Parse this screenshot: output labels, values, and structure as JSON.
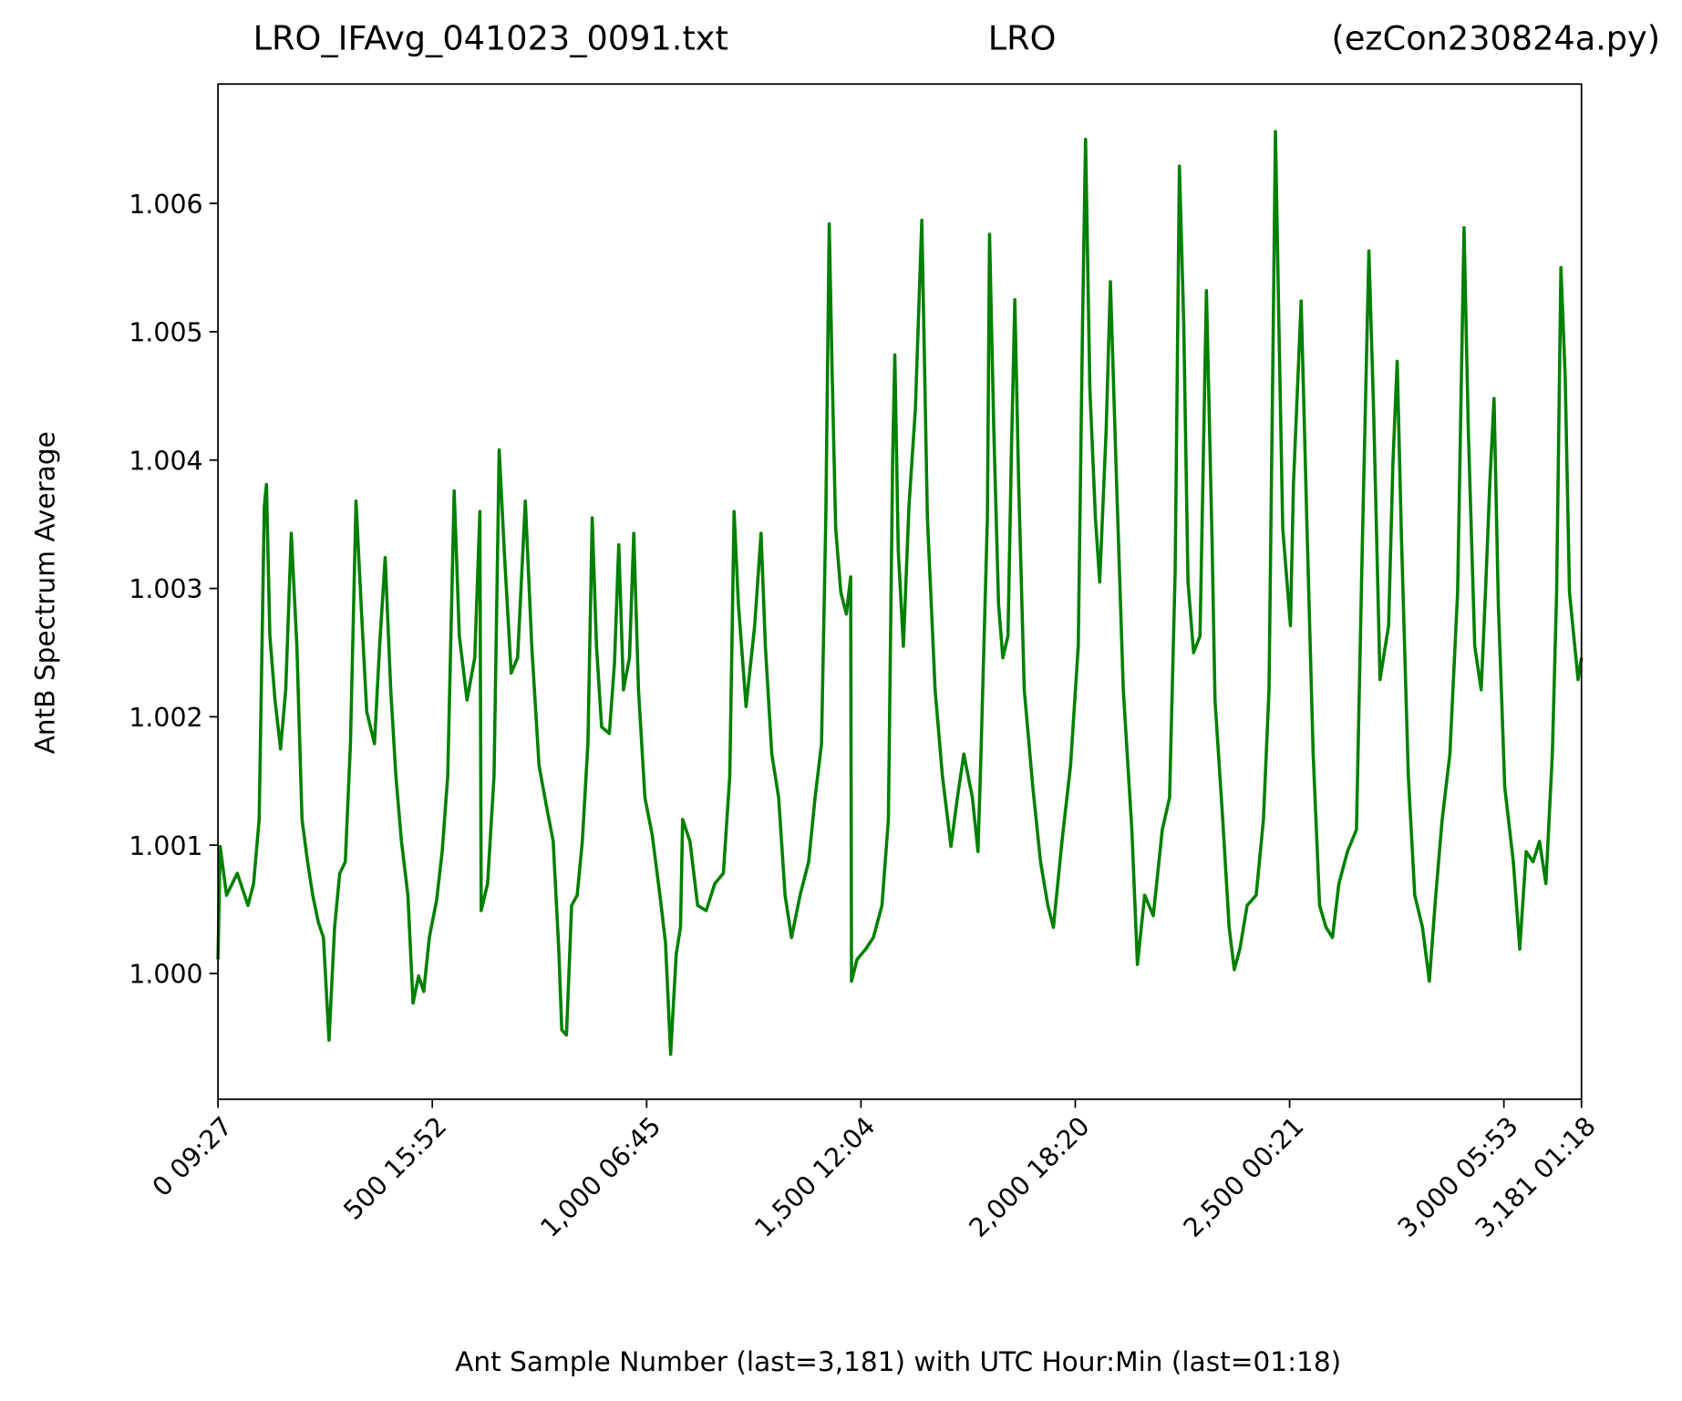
{
  "chart_data": {
    "type": "line",
    "title": [
      "LRO_IFAvg_041023_0091.txt",
      "LRO",
      "(ezCon230824a.py)"
    ],
    "xlabel": "Ant Sample Number (last=3,181) with UTC Hour:Min (last=01:18)",
    "ylabel": "AntB Spectrum Average",
    "color": "#008000",
    "xlim": [
      0,
      3181
    ],
    "ylim": [
      0.99902,
      1.00693
    ],
    "xticks": [
      {
        "value": 0,
        "label": "0  09:27"
      },
      {
        "value": 500,
        "label": "500  15:52"
      },
      {
        "value": 1000,
        "label": "1,000  06:45"
      },
      {
        "value": 1500,
        "label": "1,500  12:04"
      },
      {
        "value": 2000,
        "label": "2,000  18:20"
      },
      {
        "value": 2500,
        "label": "2,500  00:21"
      },
      {
        "value": 3000,
        "label": "3,000  05:53"
      },
      {
        "value": 3181,
        "label": "3,181  01:18"
      }
    ],
    "yticks": [
      {
        "value": 1,
        "label": "1.000"
      },
      1.001,
      1.002,
      1.003,
      1.004,
      1.005,
      1.006
    ],
    "x": [
      0,
      5,
      20,
      45,
      70,
      83,
      96,
      108,
      113,
      121,
      133,
      146,
      158,
      171,
      184,
      196,
      209,
      221,
      234,
      246,
      259,
      272,
      284,
      297,
      309,
      322,
      335,
      347,
      365,
      377,
      390,
      403,
      415,
      428,
      443,
      455,
      468,
      480,
      493,
      510,
      523,
      536,
      551,
      563,
      581,
      599,
      611,
      614,
      629,
      644,
      656,
      669,
      684,
      699,
      717,
      732,
      749,
      767,
      782,
      795,
      802,
      813,
      825,
      838,
      850,
      863,
      873,
      883,
      895,
      913,
      925,
      935,
      946,
      960,
      970,
      981,
      996,
      1013,
      1031,
      1044,
      1056,
      1069,
      1079,
      1084,
      1101,
      1119,
      1139,
      1159,
      1179,
      1194,
      1204,
      1214,
      1232,
      1252,
      1267,
      1277,
      1292,
      1308,
      1323,
      1338,
      1358,
      1378,
      1393,
      1408,
      1418,
      1426,
      1433,
      1441,
      1453,
      1466,
      1476,
      1478,
      1491,
      1511,
      1529,
      1549,
      1564,
      1574,
      1579,
      1587,
      1599,
      1612,
      1627,
      1642,
      1655,
      1673,
      1690,
      1710,
      1725,
      1740,
      1760,
      1773,
      1780,
      1795,
      1800,
      1810,
      1821,
      1831,
      1843,
      1851,
      1859,
      1868,
      1881,
      1901,
      1919,
      1936,
      1949,
      1969,
      1989,
      2007,
      2017,
      2024,
      2034,
      2047,
      2057,
      2072,
      2082,
      2095,
      2112,
      2132,
      2145,
      2162,
      2182,
      2203,
      2220,
      2233,
      2243,
      2253,
      2263,
      2276,
      2291,
      2306,
      2319,
      2326,
      2344,
      2359,
      2371,
      2384,
      2401,
      2422,
      2439,
      2452,
      2462,
      2467,
      2475,
      2484,
      2502,
      2509,
      2527,
      2540,
      2555,
      2570,
      2585,
      2600,
      2615,
      2635,
      2656,
      2670,
      2685,
      2696,
      2711,
      2731,
      2741,
      2751,
      2761,
      2777,
      2792,
      2810,
      2826,
      2841,
      2856,
      2874,
      2892,
      2907,
      2917,
      2932,
      2947,
      2957,
      2967,
      2977,
      2987,
      3002,
      3022,
      3037,
      3052,
      3068,
      3083,
      3098,
      3113,
      3123,
      3133,
      3143,
      3153,
      3163,
      3173,
      3181
    ],
    "values": [
      1.00011,
      1.00099,
      1.00061,
      1.00078,
      1.00053,
      1.0007,
      1.0012,
      1.00364,
      1.00381,
      1.00263,
      1.00213,
      1.00175,
      1.00221,
      1.00343,
      1.00255,
      1.0012,
      1.00087,
      1.00061,
      1.0004,
      1.00028,
      0.99948,
      1.00036,
      1.00078,
      1.00087,
      1.00179,
      1.00368,
      1.0028,
      1.00204,
      1.00179,
      1.00255,
      1.00324,
      1.00221,
      1.00154,
      1.00103,
      1.00061,
      0.99977,
      0.99998,
      0.99986,
      1.00028,
      1.00057,
      1.00095,
      1.00154,
      1.00376,
      1.00263,
      1.00213,
      1.00246,
      1.0036,
      1.00049,
      1.0007,
      1.00154,
      1.00408,
      1.00322,
      1.00234,
      1.00246,
      1.00368,
      1.00255,
      1.00162,
      1.00129,
      1.00103,
      1.00019,
      0.99956,
      0.99952,
      1.00053,
      1.00061,
      1.00103,
      1.00179,
      1.00355,
      1.00255,
      1.00192,
      1.00187,
      1.00242,
      1.00334,
      1.00221,
      1.00246,
      1.00343,
      1.00221,
      1.00137,
      1.00108,
      1.00061,
      1.00024,
      0.99937,
      1.00015,
      1.00036,
      1.0012,
      1.00103,
      1.00053,
      1.00049,
      1.0007,
      1.00078,
      1.00154,
      1.0036,
      1.00288,
      1.00208,
      1.00271,
      1.00343,
      1.00255,
      1.00171,
      1.00137,
      1.00061,
      1.00028,
      1.00061,
      1.00087,
      1.00137,
      1.00179,
      1.00355,
      1.00584,
      1.00465,
      1.00347,
      1.00297,
      1.0028,
      1.00309,
      0.99994,
      1.00011,
      1.00019,
      1.00028,
      1.00053,
      1.0012,
      1.00402,
      1.00482,
      1.0033,
      1.00255,
      1.00364,
      1.0044,
      1.00587,
      1.00355,
      1.00221,
      1.00154,
      1.00099,
      1.00137,
      1.00171,
      1.00137,
      1.00095,
      1.00171,
      1.00355,
      1.00576,
      1.00423,
      1.00288,
      1.00246,
      1.00263,
      1.00406,
      1.00525,
      1.00381,
      1.00221,
      1.00145,
      1.00087,
      1.00053,
      1.00036,
      1.00103,
      1.00162,
      1.00255,
      1.00507,
      1.0065,
      1.00456,
      1.00355,
      1.00305,
      1.00423,
      1.00539,
      1.00397,
      1.00221,
      1.00112,
      1.00007,
      1.00061,
      1.00045,
      1.00112,
      1.00137,
      1.00313,
      1.00629,
      1.00507,
      1.00305,
      1.0025,
      1.00263,
      1.00532,
      1.00339,
      1.00213,
      1.0012,
      1.00036,
      1.00003,
      1.00019,
      1.00053,
      1.00061,
      1.0012,
      1.00221,
      1.00507,
      1.00656,
      1.00507,
      1.00347,
      1.00271,
      1.00381,
      1.00524,
      1.00355,
      1.00171,
      1.00053,
      1.00036,
      1.00028,
      1.0007,
      1.00095,
      1.00112,
      1.00339,
      1.00563,
      1.00439,
      1.00229,
      1.00271,
      1.00397,
      1.00477,
      1.00339,
      1.00154,
      1.00061,
      1.00036,
      0.99994,
      1.00061,
      1.0012,
      1.00171,
      1.00297,
      1.00581,
      1.00423,
      1.00255,
      1.00221,
      1.00297,
      1.00381,
      1.00448,
      1.00288,
      1.00145,
      1.00087,
      1.00019,
      1.00095,
      1.00087,
      1.00103,
      1.0007,
      1.00171,
      1.00297,
      1.0055,
      1.00465,
      1.00297,
      1.00263,
      1.00229,
      1.00246
    ]
  }
}
